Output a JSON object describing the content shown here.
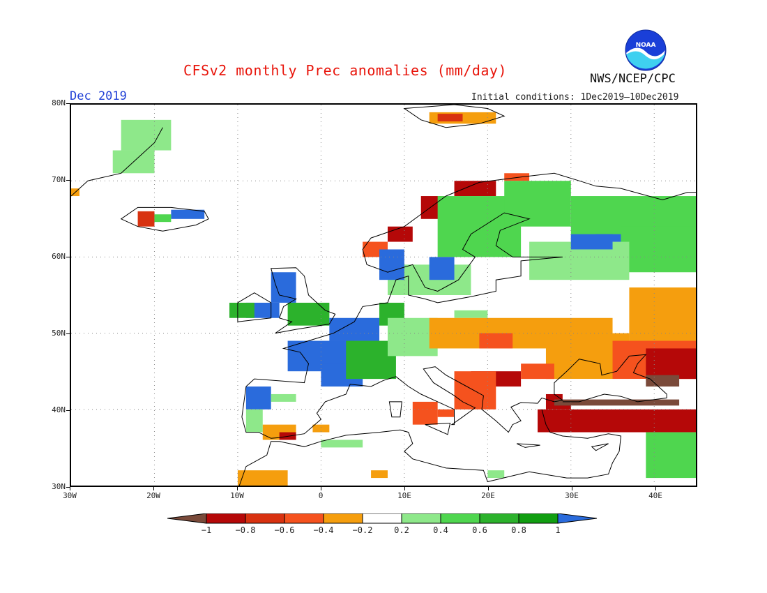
{
  "header": {
    "title": "CFSv2 monthly Prec anomalies (mm/day)",
    "month": "Dec 2019",
    "initial_conditions": "Initial conditions: 1Dec2019—10Dec2019",
    "agency": "NWS/NCEP/CPC",
    "logo_text": "NOAA"
  },
  "map": {
    "lat_labels": [
      "80N",
      "70N",
      "60N",
      "50N",
      "40N",
      "30N"
    ],
    "lon_labels": [
      "30W",
      "20W",
      "10W",
      "0",
      "10E",
      "20E",
      "30E",
      "40E"
    ],
    "lon_range": [
      -30,
      45
    ],
    "lat_range": [
      30,
      80
    ]
  },
  "legend": {
    "labels": [
      "−1",
      "−0.8",
      "−0.6",
      "−0.4",
      "−0.2",
      "0.2",
      "0.4",
      "0.6",
      "0.8",
      "1"
    ],
    "colors": [
      "#7a4a3a",
      "#b50808",
      "#d83210",
      "#f5521e",
      "#f59e0e",
      "#ffffff",
      "#8ee88a",
      "#4fd64f",
      "#2cb22c",
      "#119e11",
      "#2a6bdc"
    ]
  },
  "regions": [
    {
      "name": "greenland",
      "color": "#8ee88a",
      "cells": [
        [
          -24,
          74,
          6,
          4
        ],
        [
          -25,
          71,
          5,
          3
        ]
      ]
    },
    {
      "name": "iceland-west",
      "color": "#d83210",
      "cells": [
        [
          -22,
          64,
          2,
          2
        ]
      ]
    },
    {
      "name": "iceland-east",
      "color": "#2a6bdc",
      "cells": [
        [
          -18,
          65,
          4,
          1.2
        ]
      ]
    },
    {
      "name": "iceland-green",
      "color": "#4fd64f",
      "cells": [
        [
          -20,
          64.6,
          2,
          1
        ]
      ]
    },
    {
      "name": "svalbard",
      "color": "#f59e0e",
      "cells": [
        [
          13,
          77.5,
          8,
          1.5
        ]
      ]
    },
    {
      "name": "svalbard-red",
      "color": "#d83210",
      "cells": [
        [
          14,
          77.8,
          3,
          1
        ]
      ]
    },
    {
      "name": "norway-coast",
      "color": "#b50808",
      "cells": [
        [
          8,
          62,
          3,
          2
        ],
        [
          12,
          65,
          3,
          3
        ],
        [
          16,
          68,
          5,
          2
        ]
      ]
    },
    {
      "name": "norway-orange",
      "color": "#f5521e",
      "cells": [
        [
          5,
          60,
          3,
          2
        ],
        [
          22,
          70,
          3,
          1
        ]
      ]
    },
    {
      "name": "scandinavia-green",
      "color": "#4fd64f",
      "cells": [
        [
          14,
          60,
          10,
          8
        ],
        [
          22,
          64,
          8,
          6
        ],
        [
          30,
          62,
          15,
          6
        ],
        [
          36,
          58,
          9,
          6
        ]
      ]
    },
    {
      "name": "scandinavia-lightgreen",
      "color": "#8ee88a",
      "cells": [
        [
          8,
          55,
          10,
          4
        ],
        [
          25,
          57,
          12,
          5
        ]
      ]
    },
    {
      "name": "baltic-blue",
      "color": "#2a6bdc",
      "cells": [
        [
          7,
          57,
          3,
          4
        ],
        [
          13,
          57,
          3,
          3
        ],
        [
          30,
          61,
          5,
          2
        ],
        [
          33,
          62,
          3,
          1
        ]
      ]
    },
    {
      "name": "uk-blue",
      "color": "#2a6bdc",
      "cells": [
        [
          -6,
          54,
          3,
          4
        ],
        [
          -9,
          52,
          4,
          2
        ]
      ]
    },
    {
      "name": "uk-green",
      "color": "#2cb22c",
      "cells": [
        [
          -4,
          51,
          5,
          3
        ],
        [
          -11,
          52,
          3,
          2
        ]
      ]
    },
    {
      "name": "france-blue",
      "color": "#2a6bdc",
      "cells": [
        [
          -4,
          45,
          8,
          4
        ],
        [
          0,
          43,
          5,
          3
        ],
        [
          1,
          49,
          6,
          3
        ]
      ]
    },
    {
      "name": "france-green",
      "color": "#2cb22c",
      "cells": [
        [
          3,
          44,
          6,
          5
        ],
        [
          7,
          51,
          3,
          3
        ]
      ]
    },
    {
      "name": "central-lightgreen",
      "color": "#8ee88a",
      "cells": [
        [
          8,
          47,
          6,
          5
        ],
        [
          16,
          52,
          4,
          1
        ]
      ]
    },
    {
      "name": "iberia-blue",
      "color": "#2a6bdc",
      "cells": [
        [
          -9,
          40,
          3,
          3
        ]
      ]
    },
    {
      "name": "iberia-lightgreen",
      "color": "#8ee88a",
      "cells": [
        [
          -9,
          37,
          2,
          3
        ],
        [
          -6,
          41,
          3,
          1
        ]
      ]
    },
    {
      "name": "iberia-orange",
      "color": "#f59e0e",
      "cells": [
        [
          -7,
          36,
          4,
          2
        ],
        [
          -10,
          30,
          6,
          2
        ]
      ]
    },
    {
      "name": "iberia-red",
      "color": "#b50808",
      "cells": [
        [
          -5,
          36,
          2,
          1
        ]
      ]
    },
    {
      "name": "east-orange",
      "color": "#f59e0e",
      "cells": [
        [
          13,
          48,
          22,
          4
        ],
        [
          27,
          44,
          10,
          6
        ],
        [
          37,
          49,
          8,
          7
        ]
      ]
    },
    {
      "name": "east-red-orange",
      "color": "#f5521e",
      "cells": [
        [
          19,
          48,
          4,
          2
        ],
        [
          35,
          44,
          10,
          5
        ]
      ]
    },
    {
      "name": "balkans-red",
      "color": "#b50808",
      "cells": [
        [
          18,
          43,
          6,
          2
        ],
        [
          39,
          44,
          6,
          4
        ]
      ]
    },
    {
      "name": "balkans-orange",
      "color": "#f5521e",
      "cells": [
        [
          16,
          40,
          5,
          5
        ],
        [
          24,
          44,
          4,
          2
        ]
      ]
    },
    {
      "name": "turkey-red",
      "color": "#b50808",
      "cells": [
        [
          26,
          37,
          19,
          3
        ],
        [
          27,
          40,
          3,
          2
        ]
      ]
    },
    {
      "name": "black-sea-white",
      "color": "#ffffff",
      "cells": [
        [
          29,
          41,
          14,
          3
        ]
      ]
    },
    {
      "name": "brown",
      "color": "#7a4a3a",
      "cells": [
        [
          28,
          40.5,
          15,
          0.8
        ],
        [
          39,
          43,
          4,
          1.5
        ]
      ]
    },
    {
      "name": "middle-east-green",
      "color": "#4fd64f",
      "cells": [
        [
          39,
          31,
          6,
          6
        ]
      ]
    },
    {
      "name": "africa-lightgreen",
      "color": "#8ee88a",
      "cells": [
        [
          0,
          35,
          5,
          1
        ],
        [
          20,
          31,
          2,
          1
        ]
      ]
    },
    {
      "name": "africa-orange",
      "color": "#f59e0e",
      "cells": [
        [
          6,
          31,
          2,
          1
        ],
        [
          -1,
          37,
          2,
          1
        ]
      ]
    },
    {
      "name": "italy-orange",
      "color": "#f5521e",
      "cells": [
        [
          11,
          38,
          3,
          3
        ],
        [
          14,
          39,
          2,
          1
        ]
      ]
    },
    {
      "name": "norway-north-orange",
      "color": "#f59e0e",
      "cells": [
        [
          -30,
          68,
          1,
          1
        ]
      ]
    }
  ]
}
